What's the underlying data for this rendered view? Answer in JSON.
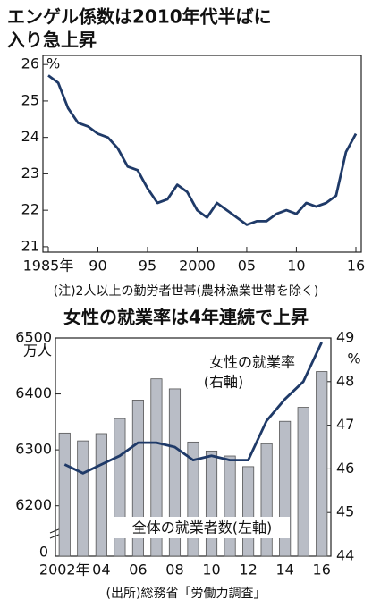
{
  "chart_data": [
    {
      "type": "line",
      "title": [
        "エンゲル係数は2010年代半ばに",
        "入り急上昇"
      ],
      "y_unit": "%",
      "note": "(注)2人以上の勤労者世帯(農林漁業世帯を除く)",
      "categories": [
        "1985年",
        null,
        null,
        null,
        null,
        "90",
        null,
        null,
        null,
        null,
        "95",
        null,
        null,
        null,
        null,
        "2000",
        null,
        null,
        null,
        null,
        "05",
        null,
        null,
        null,
        null,
        "10",
        null,
        null,
        null,
        null,
        null,
        "16"
      ],
      "series": [
        {
          "name": "エンゲル係数",
          "color": "#1f3a68",
          "values": [
            25.7,
            25.5,
            24.8,
            24.4,
            24.3,
            24.1,
            24.0,
            23.7,
            23.2,
            23.1,
            22.6,
            22.2,
            22.3,
            22.7,
            22.5,
            22.0,
            21.8,
            22.2,
            22.0,
            21.8,
            21.6,
            21.7,
            21.7,
            21.9,
            22.0,
            21.9,
            22.2,
            22.1,
            22.2,
            22.4,
            23.6,
            24.1
          ]
        }
      ],
      "ylim": [
        20.85,
        26.25
      ],
      "yticks": [
        21,
        22,
        23,
        24,
        25,
        26
      ]
    },
    {
      "type": "bar_line",
      "title": "女性の就業率は4年連続で上昇",
      "y_unit": "万人",
      "y2_unit": "%",
      "y_break_label": "0",
      "annotations": [
        "女性の就業率",
        "(右軸)",
        "全体の就業者数(左軸)"
      ],
      "source": "(出所)総務省「労働力調査」",
      "categories": [
        "2002年",
        null,
        "04",
        null,
        "06",
        null,
        "08",
        null,
        "10",
        null,
        "12",
        null,
        "14",
        null,
        "16"
      ],
      "series": [
        {
          "name": "全体の就業者数",
          "color": "#b9bdc6",
          "values": [
            6330,
            6316,
            6329,
            6356,
            6389,
            6427,
            6409,
            6314,
            6298,
            6289,
            6270,
            6311,
            6351,
            6376,
            6440
          ]
        },
        {
          "name": "女性の就業率",
          "color": "#1f3a68",
          "axis": "y2",
          "values": [
            46.1,
            45.9,
            46.1,
            46.3,
            46.6,
            46.6,
            46.5,
            46.2,
            46.3,
            46.2,
            46.2,
            47.1,
            47.6,
            48.0,
            48.9
          ]
        }
      ],
      "ylim": [
        6110,
        6500
      ],
      "yticks": [
        6200,
        6300,
        6400,
        6500
      ],
      "y2lim": [
        44,
        49
      ],
      "y2ticks": [
        44,
        45,
        46,
        47,
        48,
        49
      ]
    }
  ]
}
